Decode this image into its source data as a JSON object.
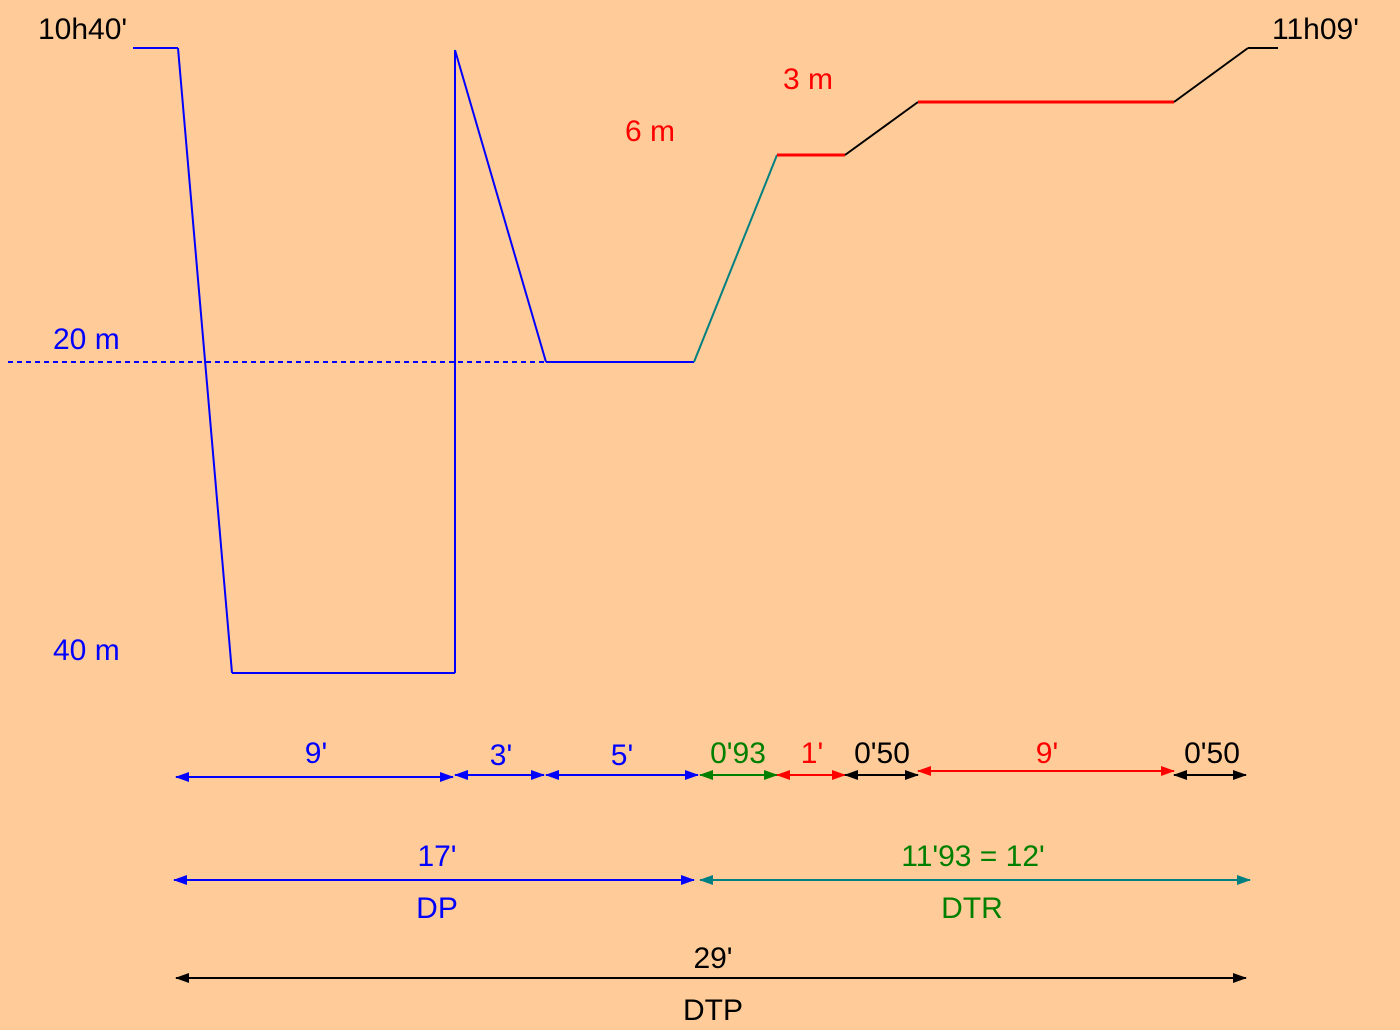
{
  "colors": {
    "background": "#FFCC99",
    "dive_profile": "#0000FF",
    "ascent_to_first_stop": "#008080",
    "stops": "#FF0000",
    "ascent_between_stops": "#000000",
    "dtr_label": "#008000"
  },
  "time_labels": {
    "start": "10h40'",
    "end": "11h09'"
  },
  "depth_labels": {
    "mid": "20 m",
    "max": "40 m",
    "stop_6m": "6 m",
    "stop_3m": "3 m"
  },
  "segments_row": [
    {
      "label": "9'",
      "color": "#0000FF"
    },
    {
      "label": "3'",
      "color": "#0000FF"
    },
    {
      "label": "5'",
      "color": "#0000FF"
    },
    {
      "label": "0'93",
      "color": "#008000"
    },
    {
      "label": "1'",
      "color": "#FF0000"
    },
    {
      "label": "0'50",
      "color": "#000000"
    },
    {
      "label": "9'",
      "color": "#FF0000"
    },
    {
      "label": "0'50",
      "color": "#000000"
    }
  ],
  "totals_row": {
    "dp_time": "17'",
    "dp_name": "DP",
    "dtr_time": "11'93 = 12'",
    "dtr_name": "DTR"
  },
  "overall": {
    "time": "29'",
    "name": "DTP"
  }
}
